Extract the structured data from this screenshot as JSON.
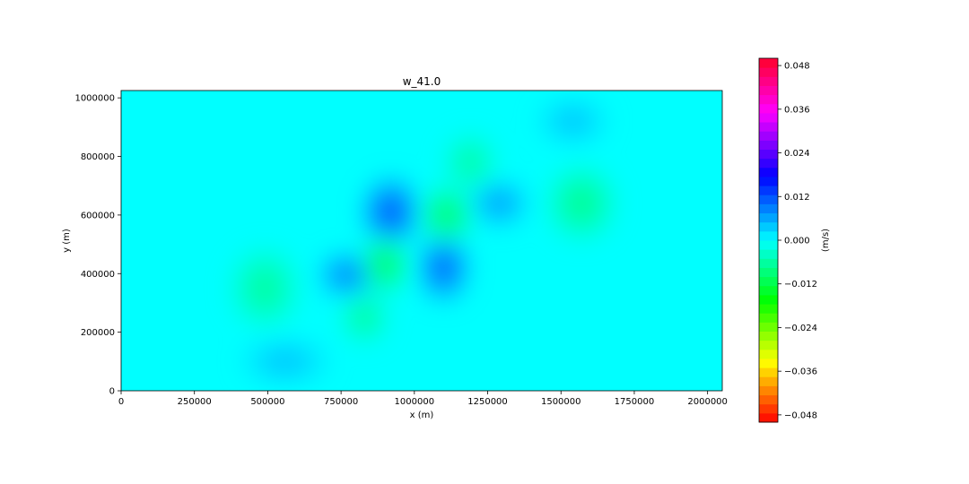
{
  "chart_data": {
    "type": "heatmap",
    "title": "w_41.0",
    "xlabel": "x (m)",
    "ylabel": "y (m)",
    "xlim": [
      0,
      2050000
    ],
    "ylim": [
      0,
      1025000
    ],
    "x_ticks": [
      0,
      250000,
      500000,
      750000,
      1000000,
      1250000,
      1500000,
      1750000,
      2000000
    ],
    "x_tick_labels": [
      "0",
      "250000",
      "500000",
      "750000",
      "1000000",
      "1250000",
      "1500000",
      "1750000",
      "2000000"
    ],
    "y_ticks": [
      0,
      200000,
      400000,
      600000,
      800000,
      1000000
    ],
    "y_tick_labels": [
      "0",
      "200000",
      "400000",
      "600000",
      "800000",
      "1000000"
    ],
    "background_value": 0.0,
    "features": [
      {
        "x": 920000,
        "y": 610000,
        "value": 0.012,
        "rx": 90000,
        "ry": 110000
      },
      {
        "x": 1100000,
        "y": 420000,
        "value": 0.011,
        "rx": 80000,
        "ry": 110000
      },
      {
        "x": 770000,
        "y": 395000,
        "value": 0.009,
        "rx": 90000,
        "ry": 70000
      },
      {
        "x": 1290000,
        "y": 640000,
        "value": 0.007,
        "rx": 90000,
        "ry": 70000
      },
      {
        "x": 1540000,
        "y": 920000,
        "value": 0.004,
        "rx": 110000,
        "ry": 70000
      },
      {
        "x": 560000,
        "y": 100000,
        "value": 0.004,
        "rx": 140000,
        "ry": 70000
      },
      {
        "x": 900000,
        "y": 430000,
        "value": -0.011,
        "rx": 70000,
        "ry": 90000
      },
      {
        "x": 1110000,
        "y": 600000,
        "value": -0.01,
        "rx": 80000,
        "ry": 90000
      },
      {
        "x": 830000,
        "y": 250000,
        "value": -0.007,
        "rx": 70000,
        "ry": 80000
      },
      {
        "x": 1570000,
        "y": 640000,
        "value": -0.007,
        "rx": 110000,
        "ry": 120000
      },
      {
        "x": 1190000,
        "y": 780000,
        "value": -0.006,
        "rx": 80000,
        "ry": 90000
      },
      {
        "x": 490000,
        "y": 350000,
        "value": -0.006,
        "rx": 110000,
        "ry": 130000
      }
    ],
    "colorbar": {
      "label": "(m/s)",
      "colormap": "gist_rainbow_r",
      "range": [
        -0.05,
        0.05
      ],
      "ticks": [
        0.048,
        0.036,
        0.024,
        0.012,
        0.0,
        -0.012,
        -0.024,
        -0.036,
        -0.048
      ],
      "tick_labels": [
        "0.048",
        "0.036",
        "0.024",
        "0.012",
        "0.000",
        "−0.012",
        "−0.024",
        "−0.036",
        "−0.048"
      ]
    },
    "grid": false
  }
}
